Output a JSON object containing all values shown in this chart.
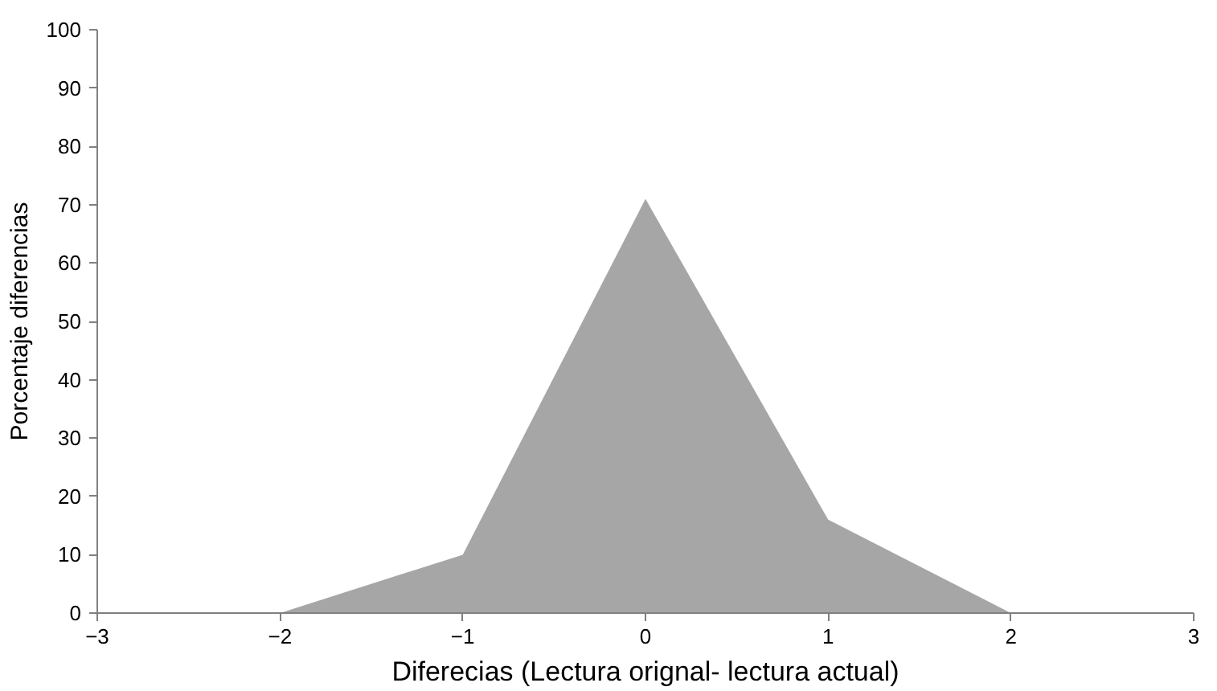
{
  "chart_data": {
    "type": "area",
    "xlabel": "Diferecias (Lectura orignal- lectura actual)",
    "ylabel": "Porcentaje diferencias",
    "x": [
      -2,
      -1,
      0,
      1,
      2
    ],
    "series": [
      {
        "color": "#a6a6a6",
        "values": [
          0,
          10,
          71,
          16,
          0
        ]
      }
    ],
    "xlim": [
      -3,
      3
    ],
    "xticks": [
      -3,
      -2,
      -1,
      0,
      1,
      2,
      3
    ],
    "ylim": [
      0,
      100
    ],
    "yticks": [
      0,
      10,
      20,
      30,
      40,
      50,
      60,
      70,
      80,
      90,
      100
    ]
  }
}
